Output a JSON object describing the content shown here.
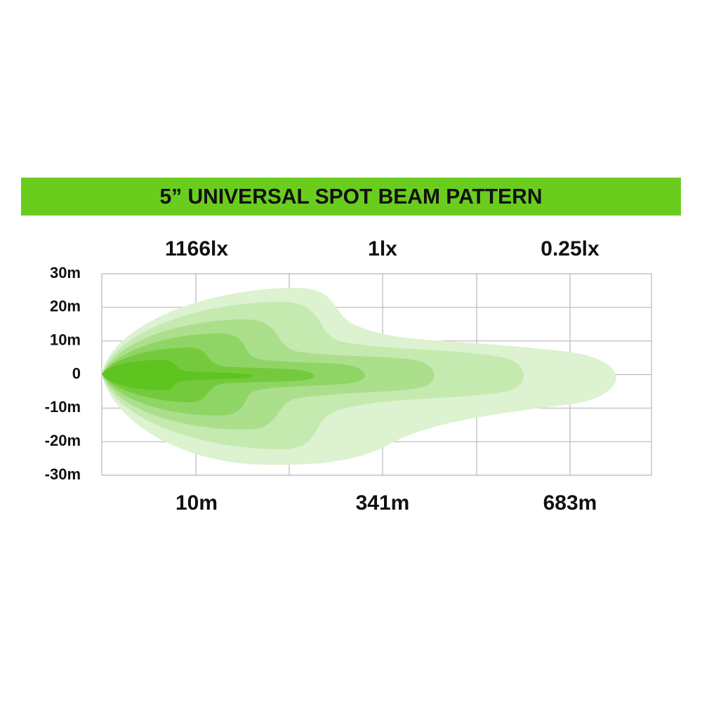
{
  "header": {
    "title": "5” UNIVERSAL SPOT BEAM PATTERN"
  },
  "lux_labels": [
    "1166lx",
    "1lx",
    "0.25lx"
  ],
  "distance_labels": [
    "10m",
    "341m",
    "683m"
  ],
  "y_axis_labels": [
    "30m",
    "20m",
    "10m",
    "0",
    "-10m",
    "-20m",
    "-30m"
  ]
}
